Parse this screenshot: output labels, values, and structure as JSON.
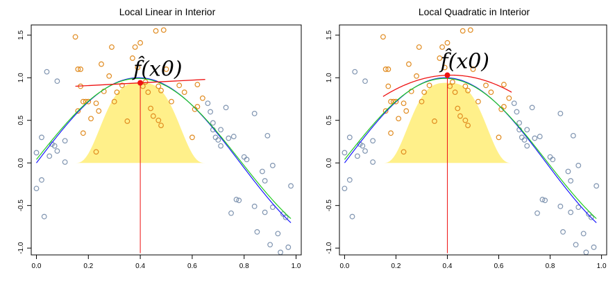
{
  "chart_data": [
    {
      "type": "scatter",
      "title": "Local Linear in Interior",
      "xlabel": "",
      "ylabel": "",
      "xlim": [
        -0.02,
        1.02
      ],
      "ylim": [
        -1.08,
        1.62
      ],
      "xticks": [
        "0.0",
        "0.2",
        "0.4",
        "0.6",
        "0.8",
        "1.0"
      ],
      "yticks": [
        "-1.0",
        "-0.5",
        "0.0",
        "0.5",
        "1.0",
        "1.5"
      ],
      "grid": false,
      "annotation": "f̂(x0)",
      "x0": 0.4,
      "fhat_x0": 0.94,
      "kernel_window": [
        0.15,
        0.65
      ],
      "series": [
        {
          "kind": "points-outside",
          "color": "#7f94b0",
          "points": [
            [
              0.0,
              0.12
            ],
            [
              0.0,
              -0.3
            ],
            [
              0.02,
              0.3
            ],
            [
              0.02,
              -0.2
            ],
            [
              0.03,
              -0.63
            ],
            [
              0.04,
              1.07
            ],
            [
              0.05,
              0.08
            ],
            [
              0.06,
              0.22
            ],
            [
              0.07,
              0.2
            ],
            [
              0.08,
              0.14
            ],
            [
              0.08,
              0.96
            ],
            [
              0.11,
              0.01
            ],
            [
              0.11,
              0.26
            ],
            [
              0.66,
              0.7
            ],
            [
              0.67,
              0.6
            ],
            [
              0.68,
              0.47
            ],
            [
              0.68,
              0.39
            ],
            [
              0.69,
              0.3
            ],
            [
              0.7,
              0.27
            ],
            [
              0.71,
              0.2
            ],
            [
              0.71,
              0.39
            ],
            [
              0.73,
              0.65
            ],
            [
              0.74,
              0.29
            ],
            [
              0.75,
              -0.59
            ],
            [
              0.76,
              0.31
            ],
            [
              0.77,
              -0.43
            ],
            [
              0.78,
              -0.44
            ],
            [
              0.8,
              0.07
            ],
            [
              0.81,
              0.04
            ],
            [
              0.84,
              0.58
            ],
            [
              0.84,
              -0.51
            ],
            [
              0.85,
              -0.81
            ],
            [
              0.87,
              -0.1
            ],
            [
              0.88,
              -0.21
            ],
            [
              0.89,
              0.32
            ],
            [
              0.9,
              -0.96
            ],
            [
              0.91,
              -0.52
            ],
            [
              0.91,
              -0.03
            ],
            [
              0.88,
              -0.58
            ],
            [
              0.93,
              -0.83
            ],
            [
              0.94,
              -1.05
            ],
            [
              0.97,
              -0.99
            ],
            [
              0.98,
              -0.27
            ],
            [
              0.95,
              -0.6
            ],
            [
              0.96,
              -0.64
            ]
          ]
        },
        {
          "kind": "points-window",
          "color": "#e08a1e",
          "points": [
            [
              0.15,
              1.48
            ],
            [
              0.16,
              1.1
            ],
            [
              0.16,
              0.61
            ],
            [
              0.17,
              1.1
            ],
            [
              0.17,
              0.9
            ],
            [
              0.18,
              0.72
            ],
            [
              0.18,
              0.35
            ],
            [
              0.19,
              0.72
            ],
            [
              0.2,
              0.72
            ],
            [
              0.21,
              0.52
            ],
            [
              0.23,
              0.7
            ],
            [
              0.23,
              0.13
            ],
            [
              0.24,
              0.61
            ],
            [
              0.25,
              1.16
            ],
            [
              0.26,
              0.84
            ],
            [
              0.28,
              1.02
            ],
            [
              0.29,
              1.36
            ],
            [
              0.3,
              0.72
            ],
            [
              0.31,
              0.83
            ],
            [
              0.33,
              0.91
            ],
            [
              0.35,
              0.49
            ],
            [
              0.37,
              1.23
            ],
            [
              0.38,
              1.36
            ],
            [
              0.39,
              1.12
            ],
            [
              0.4,
              1.41
            ],
            [
              0.41,
              0.9
            ],
            [
              0.42,
              0.95
            ],
            [
              0.43,
              0.83
            ],
            [
              0.44,
              0.64
            ],
            [
              0.45,
              0.55
            ],
            [
              0.46,
              1.55
            ],
            [
              0.47,
              0.9
            ],
            [
              0.47,
              0.5
            ],
            [
              0.48,
              0.85
            ],
            [
              0.48,
              0.44
            ],
            [
              0.49,
              1.56
            ],
            [
              0.5,
              1.1
            ],
            [
              0.52,
              0.72
            ],
            [
              0.55,
              0.91
            ],
            [
              0.57,
              0.83
            ],
            [
              0.6,
              0.3
            ],
            [
              0.61,
              0.63
            ],
            [
              0.62,
              0.66
            ],
            [
              0.64,
              0.76
            ],
            [
              0.62,
              0.92
            ]
          ]
        },
        {
          "kind": "true-function",
          "color": "#1a1aff"
        },
        {
          "kind": "loess-fit",
          "color": "#22cc22"
        },
        {
          "kind": "local-linear-fit",
          "color": "#ee1111",
          "slope": 0.16
        }
      ]
    },
    {
      "type": "scatter",
      "title": "Local Quadratic in Interior",
      "xlabel": "",
      "ylabel": "",
      "xlim": [
        -0.02,
        1.02
      ],
      "ylim": [
        -1.08,
        1.62
      ],
      "xticks": [
        "0.0",
        "0.2",
        "0.4",
        "0.6",
        "0.8",
        "1.0"
      ],
      "yticks": [
        "-1.0",
        "-0.5",
        "0.0",
        "0.5",
        "1.0",
        "1.5"
      ],
      "grid": false,
      "annotation": "f̂(x0)",
      "x0": 0.4,
      "fhat_x0": 1.03,
      "kernel_window": [
        0.15,
        0.65
      ],
      "series": [
        {
          "kind": "points-outside",
          "color": "#7f94b0",
          "points": [
            [
              0.0,
              0.12
            ],
            [
              0.0,
              -0.3
            ],
            [
              0.02,
              0.3
            ],
            [
              0.02,
              -0.2
            ],
            [
              0.03,
              -0.63
            ],
            [
              0.04,
              1.07
            ],
            [
              0.05,
              0.08
            ],
            [
              0.06,
              0.22
            ],
            [
              0.07,
              0.2
            ],
            [
              0.08,
              0.14
            ],
            [
              0.08,
              0.96
            ],
            [
              0.11,
              0.01
            ],
            [
              0.11,
              0.26
            ],
            [
              0.66,
              0.7
            ],
            [
              0.67,
              0.6
            ],
            [
              0.68,
              0.47
            ],
            [
              0.68,
              0.39
            ],
            [
              0.69,
              0.3
            ],
            [
              0.7,
              0.27
            ],
            [
              0.71,
              0.2
            ],
            [
              0.71,
              0.39
            ],
            [
              0.73,
              0.65
            ],
            [
              0.74,
              0.29
            ],
            [
              0.75,
              -0.59
            ],
            [
              0.76,
              0.31
            ],
            [
              0.77,
              -0.43
            ],
            [
              0.78,
              -0.44
            ],
            [
              0.8,
              0.07
            ],
            [
              0.81,
              0.04
            ],
            [
              0.84,
              0.58
            ],
            [
              0.84,
              -0.51
            ],
            [
              0.85,
              -0.81
            ],
            [
              0.87,
              -0.1
            ],
            [
              0.88,
              -0.21
            ],
            [
              0.89,
              0.32
            ],
            [
              0.9,
              -0.96
            ],
            [
              0.91,
              -0.52
            ],
            [
              0.91,
              -0.03
            ],
            [
              0.88,
              -0.58
            ],
            [
              0.93,
              -0.83
            ],
            [
              0.94,
              -1.05
            ],
            [
              0.97,
              -0.99
            ],
            [
              0.98,
              -0.27
            ],
            [
              0.95,
              -0.6
            ],
            [
              0.96,
              -0.64
            ]
          ]
        },
        {
          "kind": "points-window",
          "color": "#e08a1e",
          "points": [
            [
              0.15,
              1.48
            ],
            [
              0.16,
              1.1
            ],
            [
              0.16,
              0.61
            ],
            [
              0.17,
              1.1
            ],
            [
              0.17,
              0.9
            ],
            [
              0.18,
              0.72
            ],
            [
              0.18,
              0.35
            ],
            [
              0.19,
              0.72
            ],
            [
              0.2,
              0.72
            ],
            [
              0.21,
              0.52
            ],
            [
              0.23,
              0.7
            ],
            [
              0.23,
              0.13
            ],
            [
              0.24,
              0.61
            ],
            [
              0.25,
              1.16
            ],
            [
              0.26,
              0.84
            ],
            [
              0.28,
              1.02
            ],
            [
              0.29,
              1.36
            ],
            [
              0.3,
              0.72
            ],
            [
              0.31,
              0.83
            ],
            [
              0.33,
              0.91
            ],
            [
              0.35,
              0.49
            ],
            [
              0.37,
              1.23
            ],
            [
              0.38,
              1.36
            ],
            [
              0.39,
              1.12
            ],
            [
              0.4,
              1.41
            ],
            [
              0.41,
              0.9
            ],
            [
              0.42,
              0.95
            ],
            [
              0.43,
              0.83
            ],
            [
              0.44,
              0.64
            ],
            [
              0.45,
              0.55
            ],
            [
              0.46,
              1.55
            ],
            [
              0.47,
              0.9
            ],
            [
              0.47,
              0.5
            ],
            [
              0.48,
              0.85
            ],
            [
              0.48,
              0.44
            ],
            [
              0.49,
              1.56
            ],
            [
              0.5,
              1.1
            ],
            [
              0.52,
              0.72
            ],
            [
              0.55,
              0.91
            ],
            [
              0.57,
              0.83
            ],
            [
              0.6,
              0.3
            ],
            [
              0.61,
              0.63
            ],
            [
              0.62,
              0.66
            ],
            [
              0.64,
              0.76
            ],
            [
              0.62,
              0.92
            ]
          ]
        },
        {
          "kind": "true-function",
          "color": "#1a1aff"
        },
        {
          "kind": "loess-fit",
          "color": "#22cc22"
        },
        {
          "kind": "local-quadratic-fit",
          "color": "#ee1111"
        }
      ]
    }
  ],
  "colors": {
    "kernel_fill": "#fff08a",
    "axis": "#000000",
    "fhat_point": "#ee1111"
  }
}
